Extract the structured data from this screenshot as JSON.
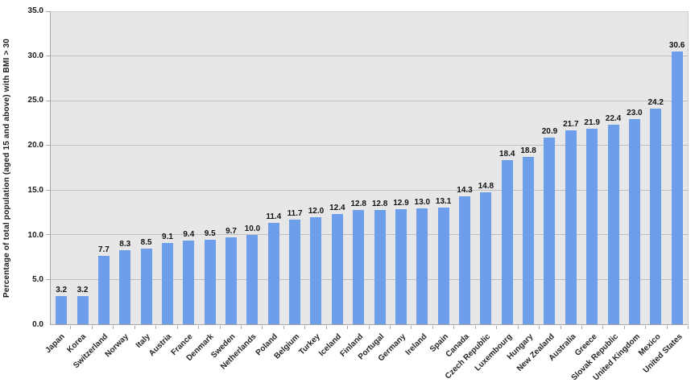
{
  "chart_data": {
    "type": "bar",
    "title": "",
    "xlabel": "",
    "ylabel": "Percentage of total population (aged 15 and above) with BMI > 30",
    "ylim": [
      0,
      35
    ],
    "ytick_step": 5,
    "ytick_labels": [
      "0.0",
      "5.0",
      "10.0",
      "15.0",
      "20.0",
      "25.0",
      "30.0",
      "35.0"
    ],
    "grid": true,
    "legend_position": "none",
    "value_labels_shown": true,
    "categories": [
      "Japan",
      "Korea",
      "Switzerland",
      "Norway",
      "Italy",
      "Austria",
      "France",
      "Denmark",
      "Sweden",
      "Netherlands",
      "Poland",
      "Belgium",
      "Turkey",
      "Iceland",
      "Finland",
      "Portugal",
      "Germany",
      "Ireland",
      "Spain",
      "Canada",
      "Czech Republic",
      "Luxembourg",
      "Hungary",
      "New Zealand",
      "Australia",
      "Greece",
      "Slovak Republic",
      "United Kingdom",
      "Mexico",
      "United States"
    ],
    "values": [
      3.2,
      3.2,
      7.7,
      8.3,
      8.5,
      9.1,
      9.4,
      9.5,
      9.7,
      10.0,
      11.4,
      11.7,
      12.0,
      12.4,
      12.8,
      12.8,
      12.9,
      13.0,
      13.1,
      14.3,
      14.8,
      18.4,
      18.8,
      20.9,
      21.7,
      21.9,
      22.4,
      23.0,
      24.2,
      30.6
    ],
    "value_label_texts": [
      "3.2",
      "3.2",
      "7.7",
      "8.3",
      "8.5",
      "9.1",
      "9.4",
      "9.5",
      "9.7",
      "10.0",
      "11.4",
      "11.7",
      "12.0",
      "12.4",
      "12.8",
      "12.8",
      "12.9",
      "13.0",
      "13.1",
      "14.3",
      "14.8",
      "18.4",
      "18.8",
      "20.9",
      "21.7",
      "21.9",
      "22.4",
      "23.0",
      "24.2",
      "30.6"
    ],
    "colors": {
      "bar": "#6d9eeb",
      "plot_background": "#e7e7e7",
      "gridline": "#bfbfbf",
      "axis_line": "#a6a6a6",
      "text": "#1a1a1a",
      "page_background": "#ffffff"
    }
  }
}
